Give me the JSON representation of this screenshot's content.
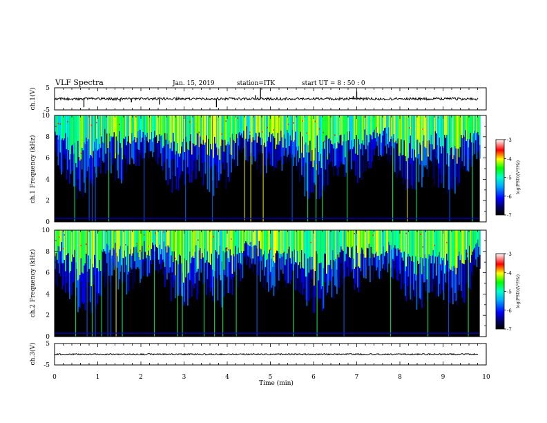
{
  "header": {
    "title": "VLF Spectra",
    "date": "Jan. 15, 2019",
    "station": "station=ITK",
    "start": "start  UT =  8 : 50 : 0"
  },
  "chart_data": [
    {
      "type": "line",
      "name": "ch1-waveform",
      "ylabel": "ch.1(V)",
      "ylim": [
        -5,
        5
      ],
      "yticks": [
        "5",
        "-5"
      ],
      "baseline": 0,
      "spikes": [
        {
          "t": 0.68,
          "v": -3.8
        },
        {
          "t": 1.52,
          "v": -1.2
        },
        {
          "t": 1.78,
          "v": -1.6
        },
        {
          "t": 2.43,
          "v": -2.6
        },
        {
          "t": 3.75,
          "v": -3.8
        },
        {
          "t": 4.65,
          "v": 1.6
        },
        {
          "t": 4.77,
          "v": 5.0
        },
        {
          "t": 6.92,
          "v": 1.2
        },
        {
          "t": 7.0,
          "v": 3.4
        },
        {
          "t": 7.22,
          "v": 0.7
        }
      ]
    },
    {
      "type": "heatmap",
      "name": "ch1-spectrogram",
      "ylabel": "ch.1 Frequency (kHz)",
      "ylim": [
        0,
        10
      ],
      "yticks": [
        "0",
        "2",
        "4",
        "6",
        "8",
        "10"
      ],
      "colorbar": {
        "label": "log(PSD)(V²/Hz)",
        "range": [
          -7,
          -3
        ],
        "ticks": [
          "-3",
          "-4",
          "-5",
          "-6",
          "-7"
        ]
      }
    },
    {
      "type": "heatmap",
      "name": "ch2-spectrogram",
      "ylabel": "ch.2 Frequency (kHz)",
      "ylim": [
        0,
        10
      ],
      "yticks": [
        "0",
        "2",
        "4",
        "6",
        "8",
        "10"
      ],
      "colorbar": {
        "label": "log(PSD)(V²/Hz)",
        "range": [
          -7,
          -3
        ],
        "ticks": [
          "-3",
          "-4",
          "-5",
          "-6",
          "-7"
        ]
      }
    },
    {
      "type": "line",
      "name": "ch3-waveform",
      "ylabel": "ch.3(V)",
      "ylim": [
        -5,
        5
      ],
      "yticks": [
        "5",
        "-5"
      ],
      "baseline": 0,
      "spikes": []
    }
  ],
  "xaxis": {
    "label": "Time (min)",
    "xlim": [
      0,
      10
    ],
    "ticks": [
      "0",
      "1",
      "2",
      "3",
      "4",
      "5",
      "6",
      "7",
      "8",
      "9",
      "10"
    ],
    "data_end": 9.85
  },
  "colors": {
    "background": "#ffffff",
    "axes": "#000000",
    "spectrogram_floor": "#000000"
  }
}
